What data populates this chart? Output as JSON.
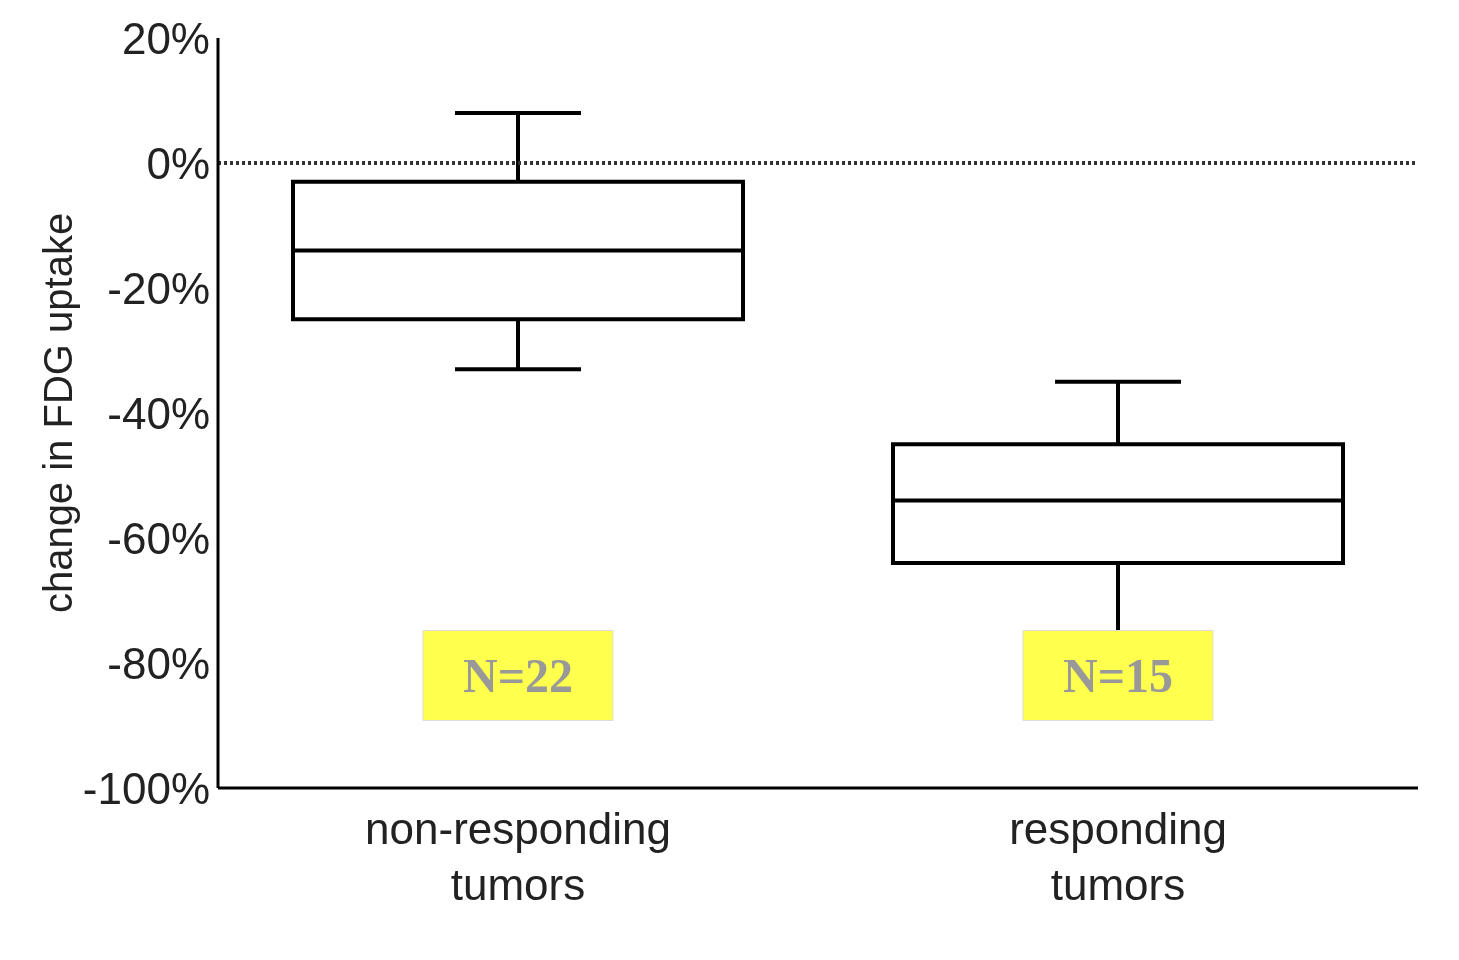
{
  "chart_data": {
    "type": "box",
    "ylabel": "change in FDG uptake",
    "categories": [
      "non-responding tumors",
      "responding tumors"
    ],
    "boxes": [
      {
        "low": -33,
        "q1": -25,
        "median": -14,
        "q3": -3,
        "high": 8
      },
      {
        "low": -76,
        "q1": -64,
        "median": -54,
        "q3": -45,
        "high": -35
      }
    ],
    "ylim": [
      -100,
      20
    ],
    "yticks": [
      {
        "value": -100,
        "label": "-100%"
      },
      {
        "value": -80,
        "label": "-80%"
      },
      {
        "value": -60,
        "label": "-60%"
      },
      {
        "value": -40,
        "label": "-40%"
      },
      {
        "value": -20,
        "label": "-20%"
      },
      {
        "value": 0,
        "label": "0%"
      },
      {
        "value": 20,
        "label": "20%"
      }
    ],
    "ref_lines": [
      {
        "axis": "y",
        "value": 0,
        "line_style": "dotted"
      }
    ],
    "annotations": [
      "N=22",
      "N=15"
    ],
    "grid": false,
    "legend": false
  }
}
